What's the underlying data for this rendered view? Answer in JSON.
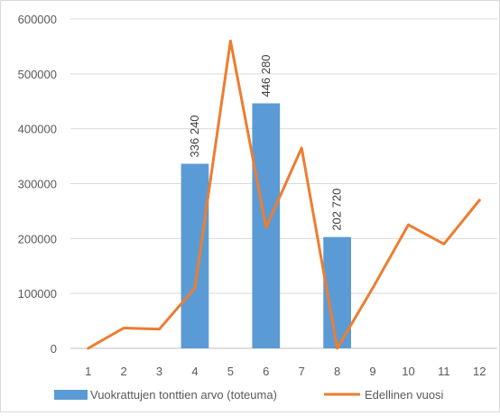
{
  "chart_data": {
    "type": "bar",
    "categories": [
      "1",
      "2",
      "3",
      "4",
      "5",
      "6",
      "7",
      "8",
      "9",
      "10",
      "11",
      "12"
    ],
    "ylim": [
      0,
      600000
    ],
    "yticks": [
      0,
      100000,
      200000,
      300000,
      400000,
      500000,
      600000
    ],
    "ytick_labels": [
      "0",
      "100000",
      "200000",
      "300000",
      "400000",
      "500000",
      "600000"
    ],
    "grid": true,
    "legend_position": "bottom",
    "series": [
      {
        "name": "Vuokrattujen tonttien arvo (toteuma)",
        "type": "bar",
        "color": "#5b9bd5",
        "values": [
          null,
          null,
          null,
          336240,
          null,
          446280,
          null,
          202720,
          null,
          null,
          null,
          null
        ],
        "data_labels": [
          null,
          null,
          null,
          "336 240",
          null,
          "446 280",
          null,
          "202 720",
          null,
          null,
          null,
          null
        ]
      },
      {
        "name": "Edellinen vuosi",
        "type": "line",
        "color": "#ed7d31",
        "values": [
          0,
          37000,
          35000,
          110000,
          560000,
          220000,
          365000,
          0,
          110000,
          225000,
          190000,
          270000
        ]
      }
    ]
  }
}
